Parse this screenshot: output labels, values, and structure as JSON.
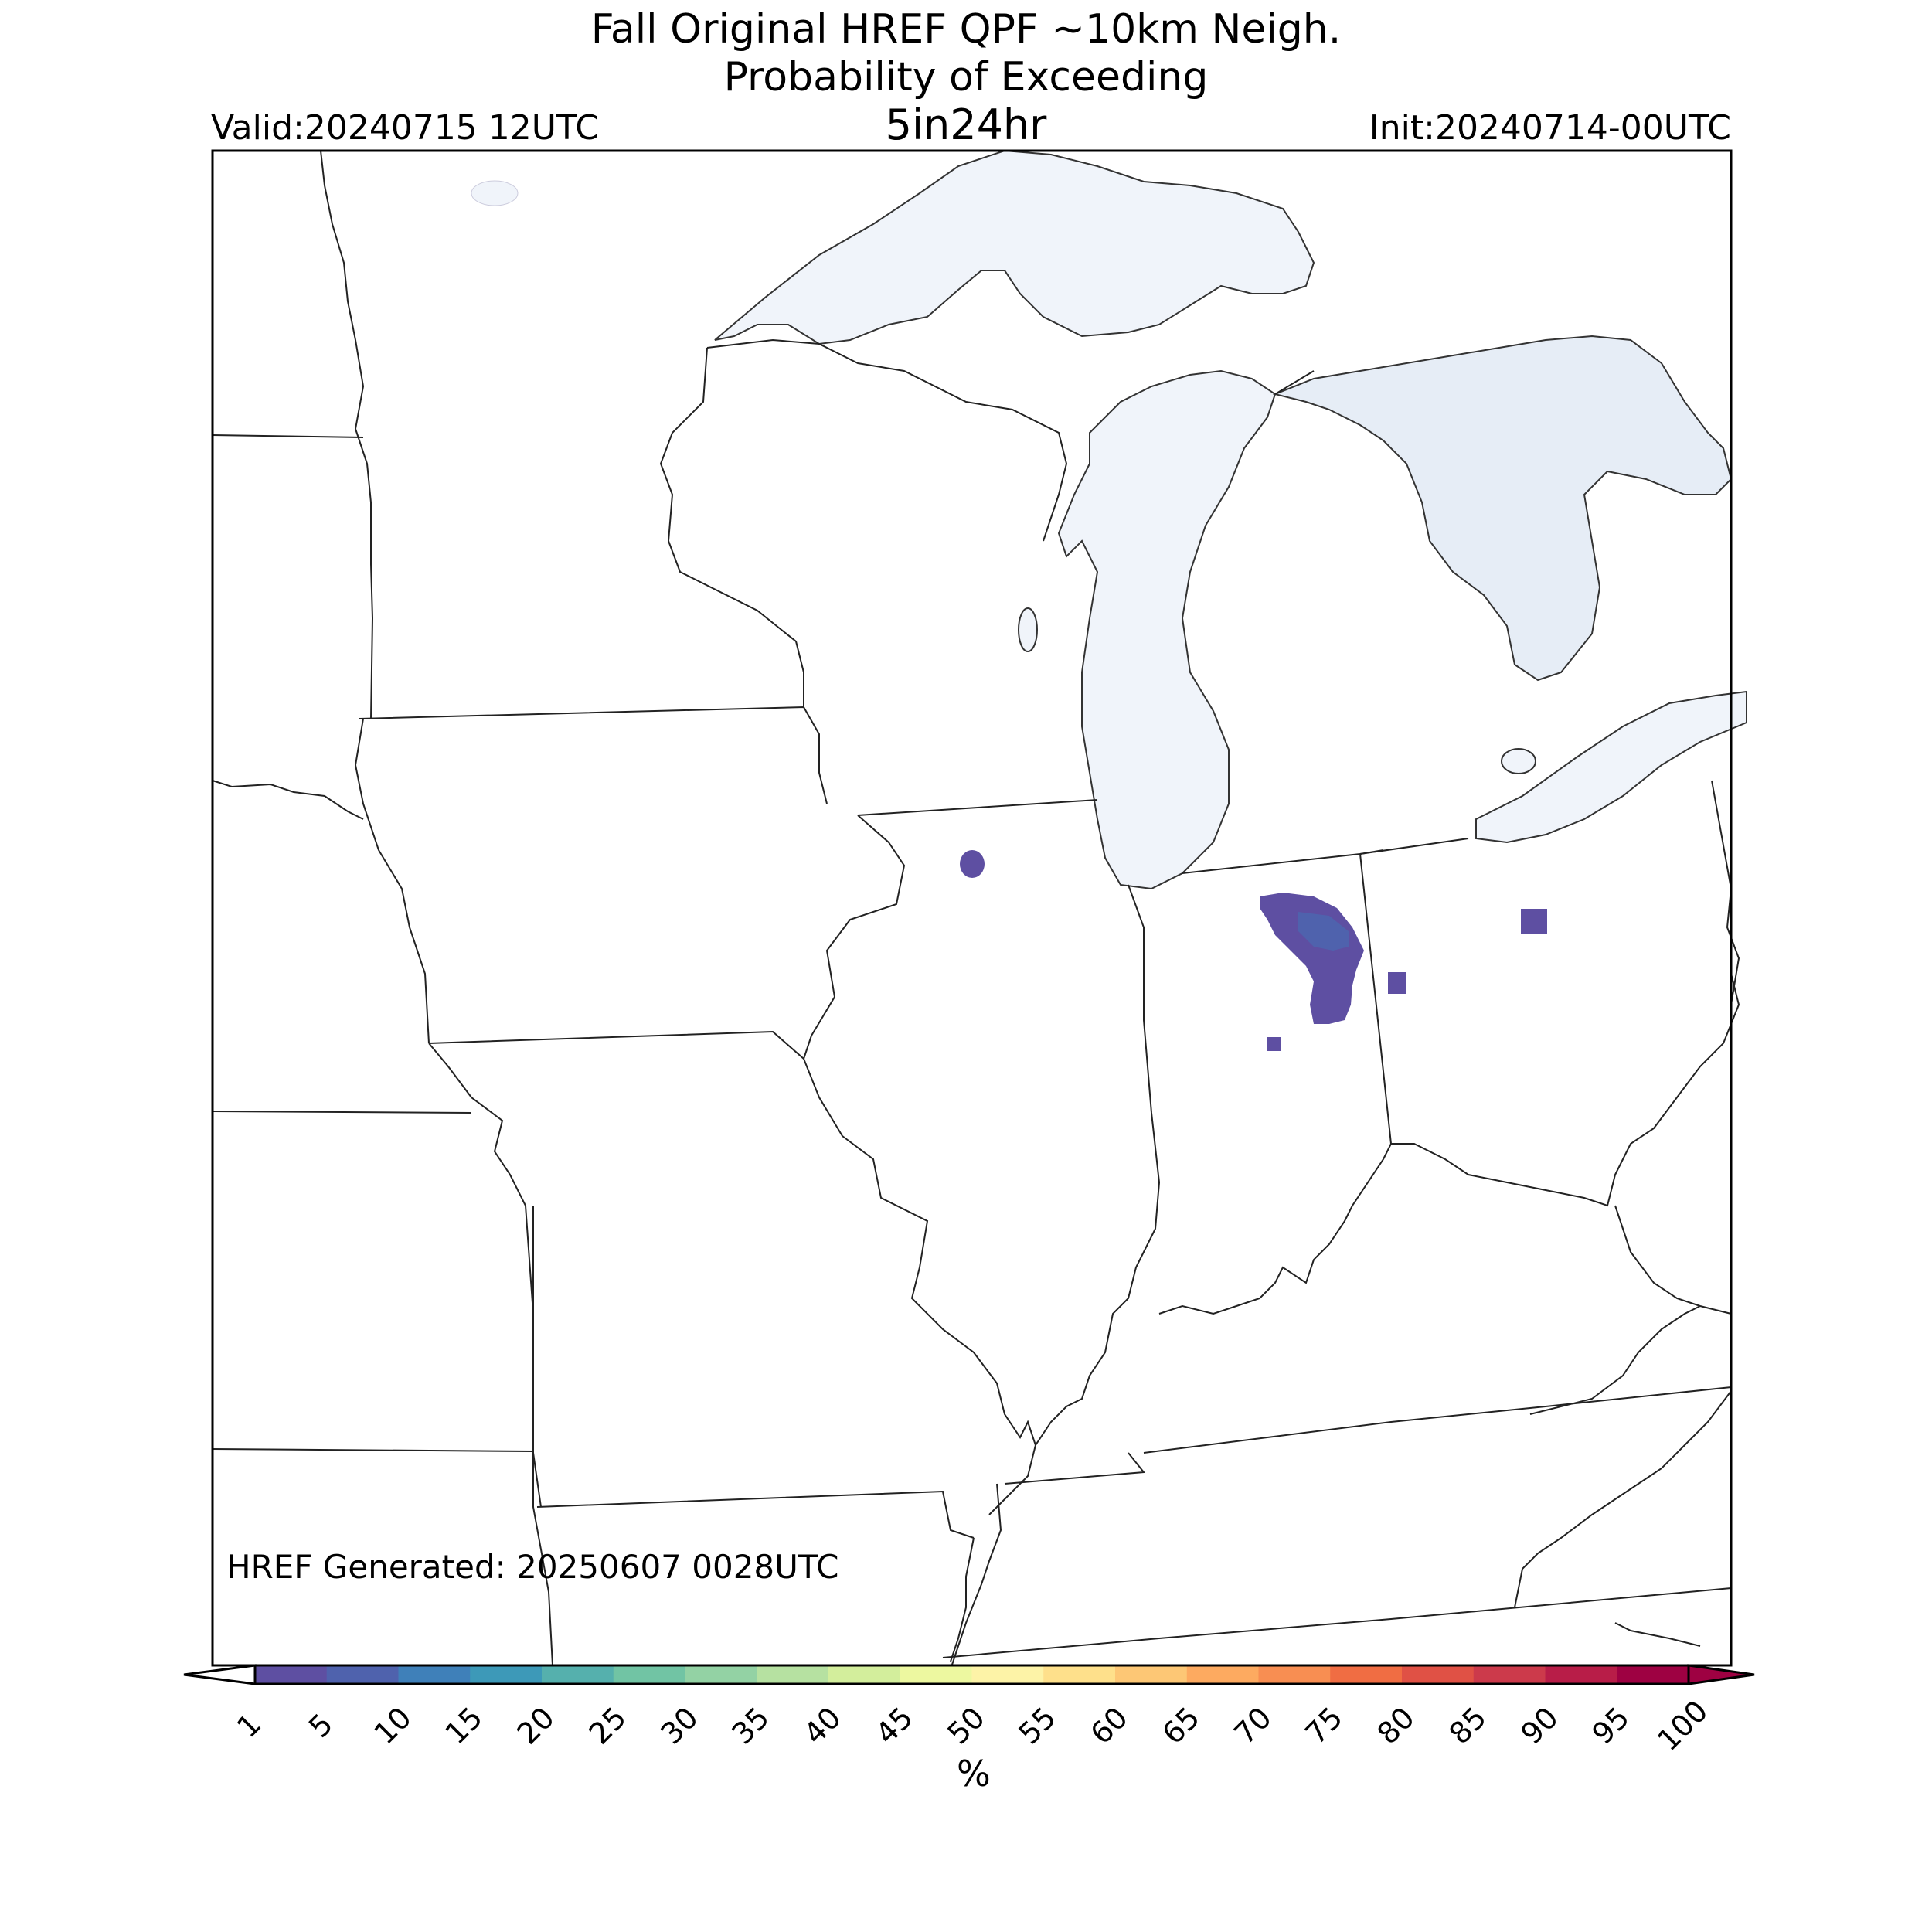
{
  "title": {
    "line1": "Fall Original HREF QPF ~10km Neigh.",
    "line2": "Probability of Exceeding",
    "line3": "5in24hr"
  },
  "valid": "Valid:20240715 12UTC",
  "init": "Init:20240714-00UTC",
  "generated": "HREF Generated: 20250607 0028UTC",
  "colorbar": {
    "unit": "%",
    "ticks": [
      "1",
      "5",
      "10",
      "15",
      "20",
      "25",
      "30",
      "35",
      "40",
      "45",
      "50",
      "55",
      "60",
      "65",
      "70",
      "75",
      "80",
      "85",
      "90",
      "95",
      "100"
    ],
    "colors": [
      "#5e4fa2",
      "#4f62ad",
      "#3f80b9",
      "#3d99b8",
      "#55b0ad",
      "#71c4a4",
      "#93d2a4",
      "#b6e1a1",
      "#d3ee9c",
      "#edf8a0",
      "#fdf3a7",
      "#fee08b",
      "#fdc775",
      "#fdaa60",
      "#f88e52",
      "#f06d43",
      "#e05145",
      "#cc3a4b",
      "#b81d48",
      "#9e0142"
    ],
    "under_color": "#ffffff",
    "over_color": "#9e0142"
  },
  "colors": {
    "water": "#f0f4fa",
    "lake_huron_dark": "#e6edf6",
    "prob_low": "#5e4fa2",
    "prob_mid": "#4f62ad"
  }
}
